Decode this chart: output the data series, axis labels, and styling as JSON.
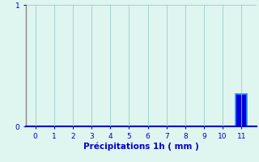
{
  "title": "",
  "xlabel": "Précipitations 1h ( mm )",
  "xlim": [
    -0.5,
    11.8
  ],
  "ylim": [
    0,
    1.0
  ],
  "yticks": [
    0,
    1
  ],
  "ytick_labels": [
    "0",
    "1"
  ],
  "xticks": [
    0,
    1,
    2,
    3,
    4,
    5,
    6,
    7,
    8,
    9,
    10,
    11
  ],
  "bar_x": [
    11
  ],
  "bar_heights": [
    0.27
  ],
  "bar_color": "#0000dd",
  "bar_edge_color": "#2299ff",
  "bar_width": 0.6,
  "background_color": "#dff5f0",
  "grid_color": "#99cccc",
  "left_spine_color": "#888888",
  "bottom_spine_color": "#0000cc",
  "text_color": "#0000cc",
  "tick_fontsize": 6.5,
  "xlabel_fontsize": 7.5,
  "xlabel_fontweight": "bold"
}
